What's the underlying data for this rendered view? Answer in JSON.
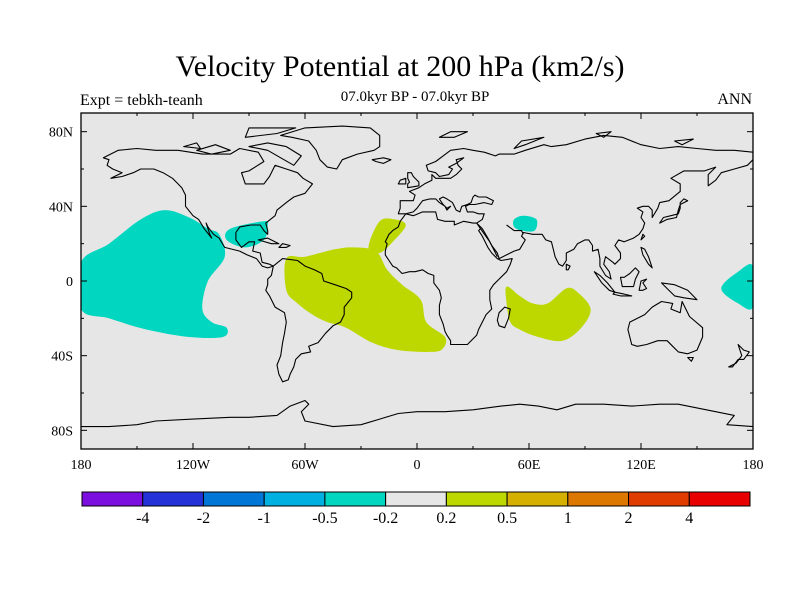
{
  "title": "Velocity Potential at 200 hPa (km2/s)",
  "subtitle": "07.0kyr BP - 07.0kyr BP",
  "left_label": "Expt = tebkh-teanh",
  "right_label": "ANN",
  "map": {
    "lon_range": [
      -180,
      180
    ],
    "lat_range": [
      -90,
      90
    ],
    "background_color": "#e6e6e6",
    "coastline_color": "#000000",
    "lon_ticks": [
      {
        "value": -180,
        "label": "180"
      },
      {
        "value": -120,
        "label": "120W"
      },
      {
        "value": -60,
        "label": "60W"
      },
      {
        "value": 0,
        "label": "0"
      },
      {
        "value": 60,
        "label": "60E"
      },
      {
        "value": 120,
        "label": "120E"
      },
      {
        "value": 180,
        "label": "180"
      }
    ],
    "lat_ticks": [
      {
        "value": 80,
        "label": "80N"
      },
      {
        "value": 40,
        "label": "40N"
      },
      {
        "value": 0,
        "label": "0"
      },
      {
        "value": -40,
        "label": "40S"
      },
      {
        "value": -80,
        "label": "80S"
      }
    ],
    "regions": [
      {
        "name": "east-pacific-negative",
        "color": "#00d6c0",
        "points": [
          [
            -180,
            10
          ],
          [
            -165,
            20
          ],
          [
            -148,
            33
          ],
          [
            -135,
            38
          ],
          [
            -122,
            34
          ],
          [
            -112,
            28
          ],
          [
            -106,
            25
          ],
          [
            -103,
            13
          ],
          [
            -112,
            0
          ],
          [
            -115,
            -15
          ],
          [
            -110,
            -22
          ],
          [
            -102,
            -25
          ],
          [
            -104,
            -30
          ],
          [
            -122,
            -30
          ],
          [
            -145,
            -26
          ],
          [
            -165,
            -20
          ],
          [
            -180,
            -15
          ]
        ]
      },
      {
        "name": "caribbean-negative",
        "color": "#00d6c0",
        "points": [
          [
            -100,
            28
          ],
          [
            -82,
            32
          ],
          [
            -80,
            30
          ],
          [
            -82,
            22
          ],
          [
            -92,
            18
          ],
          [
            -102,
            22
          ]
        ]
      },
      {
        "name": "middle-east-negative",
        "color": "#00d6c0",
        "points": [
          [
            52,
            33
          ],
          [
            57,
            35
          ],
          [
            64,
            33
          ],
          [
            63,
            27
          ],
          [
            56,
            27
          ],
          [
            52,
            29
          ]
        ]
      },
      {
        "name": "west-pacific-negative",
        "color": "#00d6c0",
        "points": [
          [
            163,
            -4
          ],
          [
            172,
            5
          ],
          [
            180,
            8
          ],
          [
            180,
            -14
          ],
          [
            172,
            -12
          ]
        ]
      },
      {
        "name": "atlantic-africa-positive",
        "color": "#bcd800",
        "points": [
          [
            -70,
            12
          ],
          [
            -60,
            13
          ],
          [
            -44,
            17
          ],
          [
            -34,
            18
          ],
          [
            -22,
            16
          ],
          [
            -16,
            6
          ],
          [
            -8,
            -2
          ],
          [
            2,
            -10
          ],
          [
            5,
            -22
          ],
          [
            15,
            -30
          ],
          [
            14,
            -36
          ],
          [
            8,
            -38
          ],
          [
            -10,
            -37
          ],
          [
            -24,
            -33
          ],
          [
            -38,
            -25
          ],
          [
            -48,
            -22
          ],
          [
            -56,
            -18
          ],
          [
            -64,
            -12
          ],
          [
            -70,
            -5
          ]
        ]
      },
      {
        "name": "north-africa-positive",
        "color": "#bcd800",
        "points": [
          [
            -26,
            18
          ],
          [
            -20,
            32
          ],
          [
            -12,
            33
          ],
          [
            -6,
            30
          ],
          [
            -12,
            22
          ],
          [
            -20,
            15
          ]
        ]
      },
      {
        "name": "indian-ocean-positive",
        "color": "#bcd800",
        "points": [
          [
            48,
            -3
          ],
          [
            55,
            -8
          ],
          [
            62,
            -12
          ],
          [
            70,
            -12
          ],
          [
            80,
            -4
          ],
          [
            86,
            -6
          ],
          [
            93,
            -15
          ],
          [
            88,
            -25
          ],
          [
            78,
            -32
          ],
          [
            65,
            -30
          ],
          [
            55,
            -26
          ],
          [
            50,
            -22
          ],
          [
            48,
            -12
          ]
        ]
      }
    ]
  },
  "colorbar": {
    "colors": [
      "#7b0fe0",
      "#2430d8",
      "#0077d6",
      "#00b0e0",
      "#00d6c0",
      "#e6e6e6",
      "#bcd800",
      "#d6b000",
      "#dc7800",
      "#e03c00",
      "#e80000"
    ],
    "labels": [
      "-4",
      "-2",
      "-1",
      "-0.5",
      "-0.2",
      "0.2",
      "0.5",
      "1",
      "2",
      "4"
    ]
  }
}
